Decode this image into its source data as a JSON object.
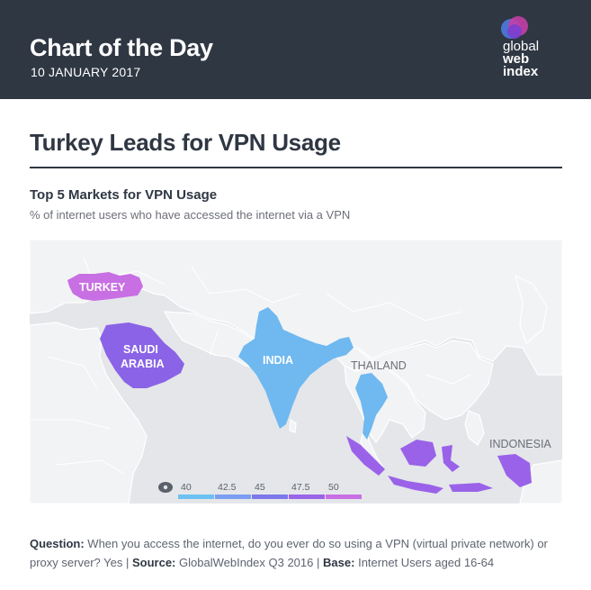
{
  "header": {
    "title": "Chart of the Day",
    "date": "10 JANUARY 2017",
    "logo": {
      "line1": "global",
      "line2": "web",
      "line3": "index"
    }
  },
  "main_title": "Turkey Leads for VPN Usage",
  "chart": {
    "title": "Top 5 Markets for VPN Usage",
    "subtitle": "% of internet users who have accessed the internet via a VPN"
  },
  "map": {
    "labels": {
      "turkey": "TURKEY",
      "saudi_line1": "SAUDI",
      "saudi_line2": "ARABIA",
      "india": "INDIA",
      "thailand": "THAILAND",
      "indonesia": "INDONESIA"
    },
    "colors": {
      "land": "#f2f3f5",
      "water": "#e4e6ea",
      "turkey": "#c86fe3",
      "saudi_arabia": "#8a63e6",
      "india": "#6fb8f0",
      "thailand": "#6fb8f0",
      "indonesia": "#9a62e8"
    },
    "legend": {
      "ticks": [
        "40",
        "42.5",
        "45",
        "47.5",
        "50"
      ],
      "colors": [
        "#6cc1f2",
        "#7b9ef0",
        "#7c78ea",
        "#9865e8",
        "#c86fe3"
      ]
    }
  },
  "chart_data": {
    "type": "choropleth",
    "markets": [
      "Turkey",
      "Saudi Arabia",
      "India",
      "Thailand",
      "Indonesia"
    ],
    "scale": {
      "min": 40,
      "max": 50,
      "ticks": [
        40,
        42.5,
        45,
        47.5,
        50
      ]
    }
  },
  "footnote": {
    "question_label": "Question:",
    "question_text": "When you access the internet, do you ever do so using a VPN (virtual private network) or proxy server? Yes",
    "sep1": "|",
    "source_label": "Source:",
    "source_text": "GlobalWebIndex Q3 2016",
    "sep2": "|",
    "base_label": "Base:",
    "base_text": "Internet Users aged 16-64"
  }
}
